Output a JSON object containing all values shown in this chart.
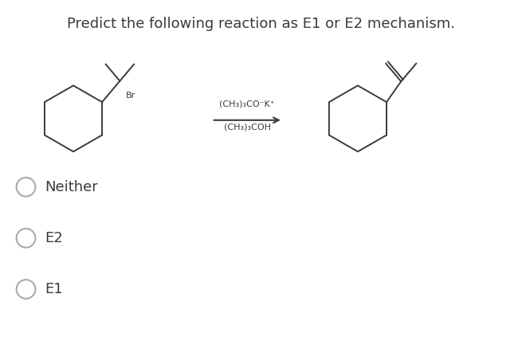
{
  "title": "Predict the following reaction as E1 or E2 mechanism.",
  "title_fontsize": 13,
  "title_color": "#3a3a3a",
  "background_color": "#ffffff",
  "options": [
    "Neither",
    "E2",
    "E1"
  ],
  "option_fontsize": 13,
  "option_color": "#3a3a3a",
  "reagent_line1": "(CH₃)₃CO⁻K⁺",
  "reagent_line2": "(CH₃)₃COH",
  "reagent_fontsize": 8,
  "br_label": "Br",
  "br_fontsize": 8
}
